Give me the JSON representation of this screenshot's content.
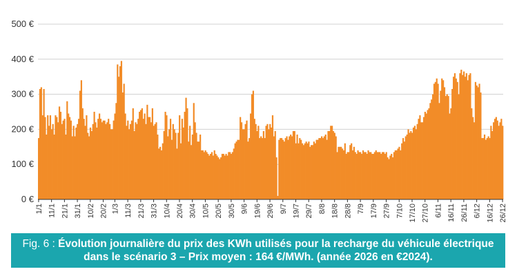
{
  "colors": {
    "bar": "#F28C28",
    "caption_bg": "#1BA6AE",
    "grid": "#D0D0D0",
    "axis": "#333333"
  },
  "caption": {
    "prefix": "Fig. 6 :",
    "text": "Évolution journalière du prix des KWh utilisés pour la recharge du véhicule électrique dans le scénario 3 – Prix moyen : 164 €/MWh. (année 2026 en €2024)."
  },
  "chart_data": {
    "type": "bar",
    "title": "",
    "xlabel": "",
    "ylabel": "",
    "ylim": [
      0,
      500
    ],
    "grid": true,
    "y_tick_values": [
      0,
      100,
      200,
      300,
      400,
      500
    ],
    "y_tick_labels": [
      "0 €",
      "100 €",
      "200 €",
      "300 €",
      "400 €",
      "500 €"
    ],
    "x_tick_labels": [
      "1/1",
      "11/1",
      "21/1",
      "31/1",
      "10/2",
      "20/2",
      "1/3",
      "11/3",
      "21/3",
      "31/3",
      "10/4",
      "20/4",
      "30/4",
      "10/5",
      "20/5",
      "30/5",
      "9/6",
      "19/6",
      "29/6",
      "9/7",
      "19/7",
      "29/7",
      "8/8",
      "18/8",
      "28/8",
      "7/9",
      "17/9",
      "27/9",
      "7/10",
      "17/10",
      "27/10",
      "6/11",
      "16/11",
      "26/11",
      "6/12",
      "16/12",
      "26/12"
    ],
    "x_tick_days": [
      0,
      10,
      20,
      30,
      40,
      50,
      59,
      69,
      79,
      89,
      99,
      109,
      119,
      129,
      139,
      149,
      159,
      169,
      179,
      189,
      199,
      209,
      219,
      229,
      239,
      249,
      259,
      269,
      279,
      289,
      299,
      309,
      319,
      329,
      339,
      349,
      359
    ],
    "values": [
      175,
      315,
      320,
      240,
      315,
      235,
      185,
      240,
      210,
      240,
      200,
      215,
      185,
      240,
      235,
      220,
      265,
      250,
      215,
      225,
      230,
      185,
      280,
      245,
      235,
      225,
      180,
      210,
      180,
      205,
      215,
      230,
      310,
      340,
      260,
      230,
      210,
      240,
      190,
      180,
      205,
      195,
      215,
      250,
      220,
      205,
      230,
      245,
      230,
      220,
      225,
      225,
      215,
      220,
      230,
      215,
      200,
      200,
      225,
      245,
      275,
      385,
      350,
      380,
      395,
      305,
      330,
      245,
      210,
      225,
      200,
      215,
      225,
      260,
      195,
      220,
      215,
      230,
      250,
      255,
      260,
      230,
      245,
      215,
      270,
      235,
      235,
      220,
      260,
      210,
      215,
      220,
      185,
      145,
      150,
      140,
      160,
      195,
      250,
      240,
      180,
      200,
      230,
      170,
      215,
      200,
      190,
      145,
      190,
      240,
      160,
      230,
      205,
      250,
      290,
      260,
      165,
      210,
      155,
      185,
      275,
      220,
      190,
      165,
      165,
      185,
      140,
      140,
      135,
      140,
      135,
      130,
      125,
      130,
      135,
      125,
      140,
      130,
      125,
      120,
      115,
      120,
      130,
      130,
      125,
      130,
      125,
      135,
      135,
      130,
      135,
      145,
      160,
      165,
      170,
      170,
      235,
      220,
      200,
      200,
      215,
      225,
      165,
      175,
      245,
      300,
      310,
      230,
      215,
      195,
      210,
      175,
      180,
      175,
      195,
      175,
      210,
      215,
      200,
      215,
      205,
      240,
      180,
      195,
      120,
      10,
      170,
      175,
      175,
      170,
      165,
      175,
      180,
      170,
      180,
      185,
      180,
      195,
      195,
      160,
      185,
      160,
      175,
      170,
      160,
      155,
      160,
      165,
      160,
      165,
      150,
      155,
      155,
      165,
      160,
      170,
      170,
      175,
      175,
      180,
      175,
      180,
      185,
      170,
      195,
      195,
      210,
      210,
      195,
      190,
      180,
      135,
      150,
      150,
      150,
      145,
      140,
      160,
      130,
      135,
      135,
      155,
      160,
      140,
      150,
      135,
      130,
      140,
      135,
      135,
      130,
      140,
      135,
      135,
      130,
      140,
      135,
      135,
      130,
      130,
      135,
      140,
      135,
      135,
      135,
      130,
      135,
      135,
      130,
      135,
      120,
      115,
      125,
      130,
      120,
      135,
      140,
      140,
      145,
      150,
      140,
      160,
      175,
      165,
      180,
      185,
      200,
      190,
      195,
      190,
      205,
      210,
      200,
      215,
      230,
      240,
      220,
      220,
      235,
      250,
      245,
      255,
      260,
      275,
      285,
      300,
      330,
      335,
      345,
      330,
      275,
      310,
      345,
      340,
      320,
      295,
      300,
      295,
      245,
      260,
      315,
      350,
      360,
      345,
      335,
      300,
      360,
      370,
      355,
      365,
      350,
      360,
      340,
      355,
      360,
      260,
      235,
      220,
      335,
      325,
      320,
      330,
      305,
      175,
      175,
      185,
      170,
      175,
      180,
      175,
      210,
      195,
      220,
      230,
      235,
      225,
      210,
      220,
      230,
      210
    ]
  }
}
